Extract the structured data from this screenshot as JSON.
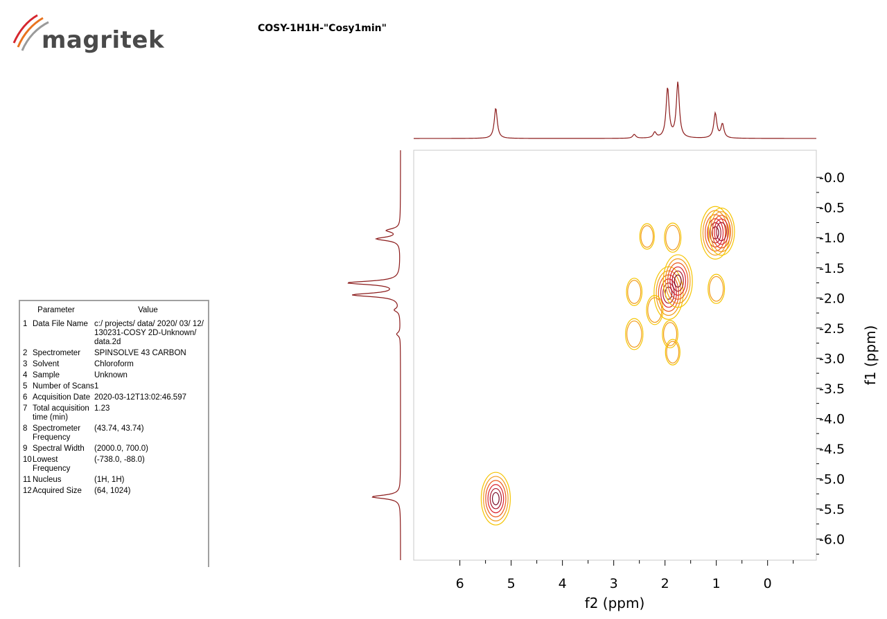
{
  "brand": {
    "name": "magritek",
    "swoosh_colors": [
      "#d6262e",
      "#e8731f",
      "#9a9a9a"
    ]
  },
  "title": "COSY-1H1H-\"Cosy1min\"",
  "parameters": {
    "headers": {
      "parameter": "Parameter",
      "value": "Value"
    },
    "rows": [
      {
        "index": "1",
        "name": "Data File Name",
        "value": "c:/ projects/ data/ 2020/ 03/ 12/ 130231-COSY 2D-Unknown/ data.2d"
      },
      {
        "index": "2",
        "name": "Spectrometer",
        "value": "SPINSOLVE 43 CARBON"
      },
      {
        "index": "3",
        "name": "Solvent",
        "value": "Chloroform"
      },
      {
        "index": "4",
        "name": "Sample",
        "value": "Unknown"
      },
      {
        "index": "5",
        "name": "Number of Scans",
        "value": "1"
      },
      {
        "index": "6",
        "name": "Acquisition Date",
        "value": "2020-03-12T13:02:46.597"
      },
      {
        "index": "7",
        "name": "Total acquisition time (min)",
        "value": "1.23"
      },
      {
        "index": "8",
        "name": "Spectrometer Frequency",
        "value": "(43.74, 43.74)"
      },
      {
        "index": "9",
        "name": "Spectral Width",
        "value": "(2000.0, 700.0)"
      },
      {
        "index": "10",
        "name": "Lowest Frequency",
        "value": "(-738.0, -88.0)"
      },
      {
        "index": "11",
        "name": "Nucleus",
        "value": "(1H, 1H)"
      },
      {
        "index": "12",
        "name": "Acquired Size",
        "value": "(64, 1024)"
      }
    ]
  },
  "chart_data": {
    "type": "contour",
    "title": "COSY-1H1H-\"Cosy1min\"",
    "xlabel": "f2 (ppm)",
    "ylabel": "f1 (ppm)",
    "xlim": [
      6.9,
      -0.95
    ],
    "ylim": [
      -0.45,
      6.35
    ],
    "x_ticks": [
      6,
      5,
      4,
      3,
      2,
      1,
      0
    ],
    "x_tick_labels": [
      "6",
      "5",
      "4",
      "3",
      "2",
      "1",
      "0"
    ],
    "y_ticks": [
      0.0,
      0.5,
      1.0,
      1.5,
      2.0,
      2.5,
      3.0,
      3.5,
      4.0,
      4.5,
      5.0,
      5.5,
      6.0
    ],
    "y_tick_labels": [
      "-0.0",
      "-0.5",
      "-1.0",
      "-1.5",
      "-2.0",
      "-2.5",
      "-3.0",
      "-3.5",
      "-4.0",
      "-4.5",
      "-5.0",
      "-5.5",
      "-6.0"
    ],
    "contour_colors": [
      "#f5c400",
      "#f29a1a",
      "#ea5a1e",
      "#d9202a",
      "#a8162c",
      "#7a0f2a"
    ],
    "projection_color": "#8b1a1a",
    "projection_peaks": [
      {
        "ppm": 5.3,
        "height": 0.55
      },
      {
        "ppm": 2.6,
        "height": 0.07
      },
      {
        "ppm": 2.2,
        "height": 0.1
      },
      {
        "ppm": 1.95,
        "height": 0.9
      },
      {
        "ppm": 1.75,
        "height": 1.0
      },
      {
        "ppm": 1.02,
        "height": 0.45
      },
      {
        "ppm": 0.88,
        "height": 0.25
      }
    ],
    "cross_peaks": [
      {
        "x": 5.3,
        "y": 5.33,
        "intensity": 1.0
      },
      {
        "x": 1.02,
        "y": 0.92,
        "intensity": 1.0
      },
      {
        "x": 0.9,
        "y": 0.9,
        "intensity": 0.85
      },
      {
        "x": 1.93,
        "y": 1.92,
        "intensity": 1.0
      },
      {
        "x": 1.75,
        "y": 1.72,
        "intensity": 1.0
      },
      {
        "x": 1.0,
        "y": 1.85,
        "intensity": 0.35
      },
      {
        "x": 1.85,
        "y": 1.0,
        "intensity": 0.35
      },
      {
        "x": 2.6,
        "y": 2.6,
        "intensity": 0.4
      },
      {
        "x": 2.6,
        "y": 1.9,
        "intensity": 0.3
      },
      {
        "x": 1.9,
        "y": 2.6,
        "intensity": 0.3
      },
      {
        "x": 2.2,
        "y": 2.2,
        "intensity": 0.35
      },
      {
        "x": 2.35,
        "y": 0.98,
        "intensity": 0.25
      },
      {
        "x": 1.85,
        "y": 2.9,
        "intensity": 0.25
      }
    ]
  }
}
